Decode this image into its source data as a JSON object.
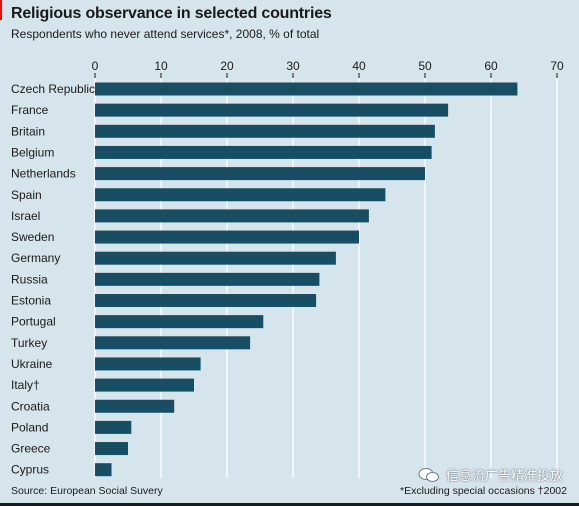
{
  "title": "Religious observance in selected countries",
  "subtitle": "Respondents who never attend services*, 2008, % of total",
  "source": "Source: European Social Suvery",
  "footnote": "*Excluding special occasions  †2002",
  "watermark": "信息流广告精准投放",
  "colors": {
    "background": "#d6e4ec",
    "bar": "#174e63",
    "grid": "#ffffff",
    "accent": "#e3120b"
  },
  "chart_data": {
    "type": "bar",
    "orientation": "horizontal",
    "categories": [
      "Czech Republic",
      "France",
      "Britain",
      "Belgium",
      "Netherlands",
      "Spain",
      "Israel",
      "Sweden",
      "Germany",
      "Russia",
      "Estonia",
      "Portugal",
      "Turkey",
      "Ukraine",
      "Italy†",
      "Croatia",
      "Poland",
      "Greece",
      "Cyprus"
    ],
    "values": [
      64,
      53.5,
      51.5,
      51,
      50,
      44,
      41.5,
      40,
      36.5,
      34,
      33.5,
      25.5,
      23.5,
      16,
      15,
      12,
      5.5,
      5,
      2.5
    ],
    "xlim": [
      0,
      70
    ],
    "xticks": [
      0,
      10,
      20,
      30,
      40,
      50,
      60,
      70
    ],
    "xaxis_position": "top",
    "grid": true
  }
}
